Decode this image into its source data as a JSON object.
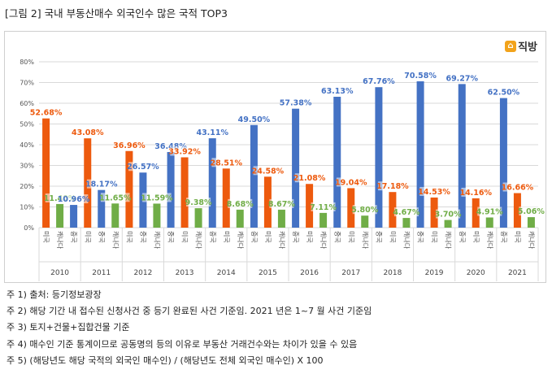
{
  "figure_title": "[그림 2] 국내 부동산매수 외국인수 많은 국적 TOP3",
  "brand": {
    "icon": "직방-house-logo-icon",
    "text": "직방",
    "icon_glyph": "⌂",
    "icon_color": "#f2a31b"
  },
  "colors": {
    "중국": "#4472c4",
    "미국": "#ed5a0e",
    "캐나다": "#70ad47",
    "grid": "#d9d9d9"
  },
  "chart_data": {
    "type": "bar",
    "title": "",
    "xlabel": "",
    "ylabel": "",
    "ylim": [
      0,
      80
    ],
    "yticks": [
      "0%",
      "10%",
      "20%",
      "30%",
      "40%",
      "50%",
      "60%",
      "70%",
      "80%"
    ],
    "grid": true,
    "legend": "none",
    "categories": [
      "2010",
      "2011",
      "2012",
      "2013",
      "2014",
      "2015",
      "2016",
      "2017",
      "2018",
      "2019",
      "2020",
      "2021"
    ],
    "series_order_by_year": {
      "2010": [
        "미국",
        "캐나다",
        "중국"
      ],
      "2011": [
        "미국",
        "중국",
        "캐나다"
      ],
      "2012": [
        "미국",
        "중국",
        "캐나다"
      ],
      "2013": [
        "중국",
        "미국",
        "캐나다"
      ],
      "2014": [
        "중국",
        "미국",
        "캐나다"
      ],
      "2015": [
        "중국",
        "미국",
        "캐나다"
      ],
      "2016": [
        "중국",
        "미국",
        "캐나다"
      ],
      "2017": [
        "중국",
        "미국",
        "캐나다"
      ],
      "2018": [
        "중국",
        "미국",
        "캐나다"
      ],
      "2019": [
        "중국",
        "미국",
        "캐나다"
      ],
      "2020": [
        "중국",
        "미국",
        "캐나다"
      ],
      "2021": [
        "중국",
        "미국",
        "캐나다"
      ]
    },
    "series": [
      {
        "name": "중국",
        "color": "#4472c4",
        "values": [
          10.96,
          18.17,
          26.57,
          36.48,
          43.11,
          49.5,
          57.38,
          63.13,
          67.76,
          70.58,
          69.27,
          62.5
        ],
        "labels": [
          "10.96%",
          "18.17%",
          "26.57%",
          "36.48%",
          "43.11%",
          "49.50%",
          "57.38%",
          "63.13%",
          "67.76%",
          "70.58%",
          "69.27%",
          "62.50%"
        ]
      },
      {
        "name": "미국",
        "color": "#ed5a0e",
        "values": [
          52.68,
          43.08,
          36.96,
          33.92,
          28.51,
          24.58,
          21.08,
          19.04,
          17.18,
          14.53,
          14.16,
          16.66
        ],
        "labels": [
          "52.68%",
          "43.08%",
          "36.96%",
          "33.92%",
          "28.51%",
          "24.58%",
          "21.08%",
          "19.04%",
          "17.18%",
          "14.53%",
          "14.16%",
          "16.66%"
        ]
      },
      {
        "name": "캐나다",
        "color": "#70ad47",
        "values": [
          11.4,
          11.65,
          11.59,
          9.38,
          8.68,
          8.67,
          7.11,
          5.8,
          4.67,
          3.7,
          4.91,
          5.06
        ],
        "labels": [
          "11.40%",
          "11.65%",
          "11.59%",
          "9.38%",
          "8.68%",
          "8.67%",
          "7.11%",
          "5.80%",
          "4.67%",
          "3.70%",
          "4.91%",
          "5.06%"
        ]
      }
    ]
  },
  "notes": [
    "주 1) 출처: 등기정보광장",
    "주 2) 해당 기간 내 접수된 신청사건 중 등기 완료된 사건 기준임. 2021 년은 1~7 월 사건 기준임",
    "주 3) 토지+건물+집합건물 기준",
    "주 4) 매수인 기준 통계이므로 공동명의 등의 이유로 부동산 거래건수와는 차이가 있을 수 있음",
    "주 5) (해당년도 해당 국적의 외국인 매수인) / (해당년도 전체 외국인 매수인) X 100"
  ]
}
